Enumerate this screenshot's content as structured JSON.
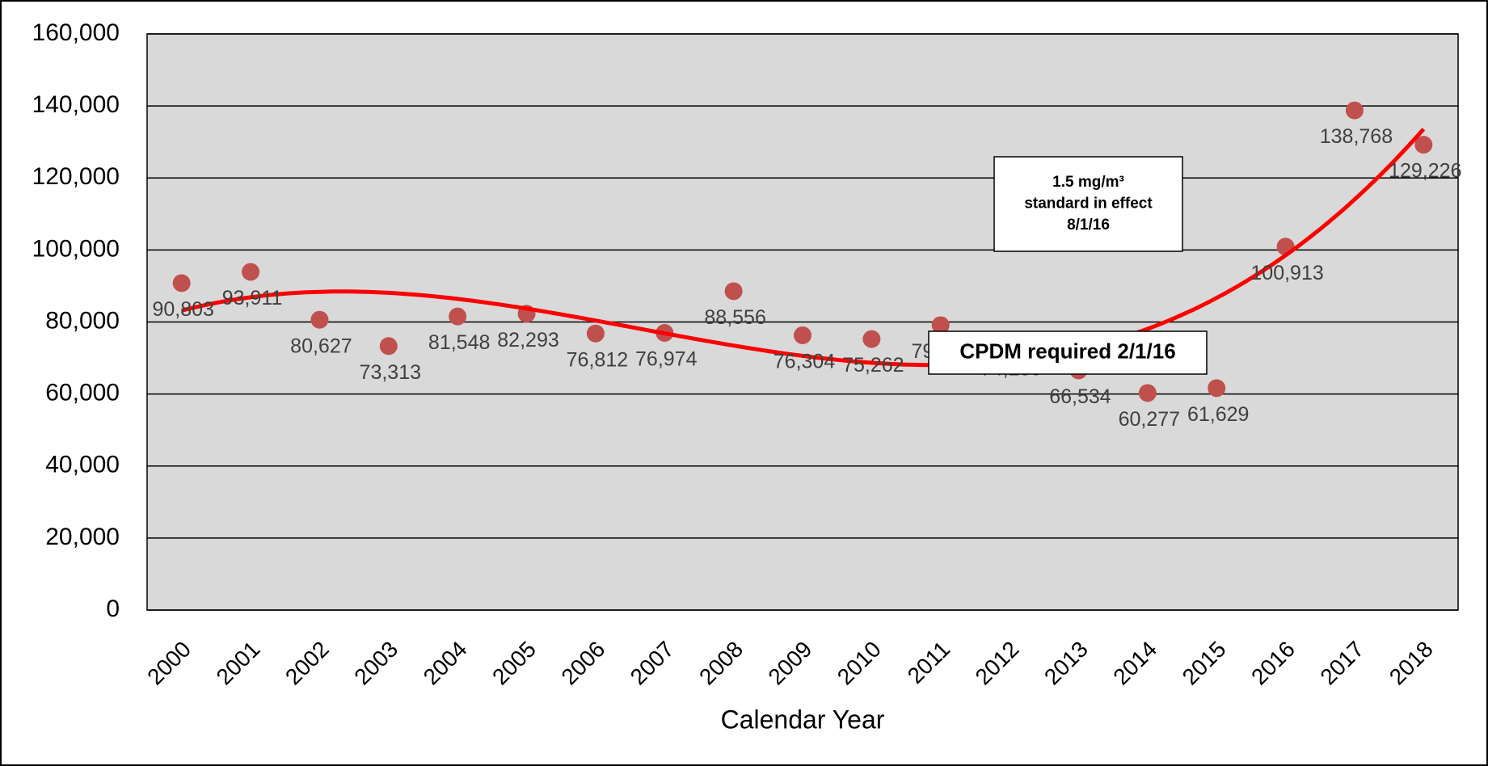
{
  "chart_data": {
    "type": "scatter",
    "x_label": "Calendar Year",
    "categories": [
      "2000",
      "2001",
      "2002",
      "2003",
      "2004",
      "2005",
      "2006",
      "2007",
      "2008",
      "2009",
      "2010",
      "2011",
      "2012",
      "2013",
      "2014",
      "2015",
      "2016",
      "2017",
      "2018"
    ],
    "values": [
      90803,
      93911,
      80627,
      73313,
      81548,
      82293,
      76812,
      76974,
      88556,
      76304,
      75262,
      79108,
      74289,
      66534,
      60277,
      61629,
      100913,
      138768,
      129226
    ],
    "value_labels": [
      "90,803",
      "93,911",
      "80,627",
      "73,313",
      "81,548",
      "82,293",
      "76,812",
      "76,974",
      "88,556",
      "76,304",
      "75,262",
      "79,108",
      "74,289",
      "66,534",
      "60,277",
      "61,629",
      "100,913",
      "138,768",
      "129,226"
    ],
    "color": "#c0504d",
    "trendline": {
      "type": "polynomial",
      "order": 3,
      "color": "#ff0000"
    },
    "ylim": [
      0,
      160000
    ],
    "yticks": [
      {
        "value": 0,
        "label": "0"
      },
      {
        "value": 20000,
        "label": "20,000"
      },
      {
        "value": 40000,
        "label": "40,000"
      },
      {
        "value": 60000,
        "label": "60,000"
      },
      {
        "value": 80000,
        "label": "80,000"
      },
      {
        "value": 100000,
        "label": "100,000"
      },
      {
        "value": 120000,
        "label": "120,000"
      },
      {
        "value": 140000,
        "label": "140,000"
      },
      {
        "value": 160000,
        "label": "160,000"
      }
    ],
    "grid": true,
    "annotations": [
      {
        "lines": [
          "1.5 mg/m³",
          "standard  in effect",
          "8/1/16"
        ]
      },
      {
        "lines": [
          "CPDM required 2/1/16"
        ]
      }
    ]
  }
}
